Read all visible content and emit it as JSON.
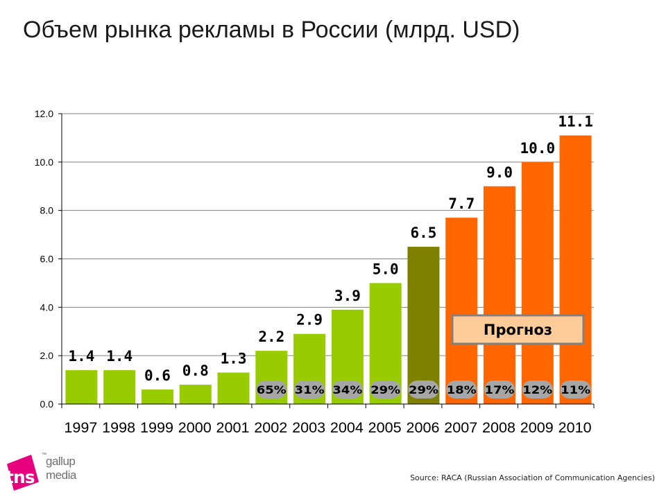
{
  "title": "Объем рынка рекламы в России (млрд. USD)",
  "source": "Source: RACA (Russian Association of Communication Agencies)",
  "logo": {
    "mark": "tns",
    "tm": "™",
    "line1": "gallup",
    "line2": "media"
  },
  "colors": {
    "actual": "#99cc00",
    "current": "#808000",
    "forecast": "#ff6600",
    "growth_pill": "#a6a6a6",
    "forecast_box_fill": "#ffcc99",
    "forecast_box_border": "#808080",
    "grid": "#808080"
  },
  "chart_data": {
    "type": "bar",
    "categories": [
      "1997",
      "1998",
      "1999",
      "2000",
      "2001",
      "2002",
      "2003",
      "2004",
      "2005",
      "2006",
      "2007",
      "2008",
      "2009",
      "2010"
    ],
    "values": [
      1.4,
      1.4,
      0.6,
      0.8,
      1.3,
      2.2,
      2.9,
      3.9,
      5.0,
      6.5,
      7.7,
      9.0,
      10.0,
      11.1
    ],
    "value_labels": [
      "1.4",
      "1.4",
      "0.6",
      "0.8",
      "1.3",
      "2.2",
      "2.9",
      "3.9",
      "5.0",
      "6.5",
      "7.7",
      "9.0",
      "10.0",
      "11.1"
    ],
    "bar_kinds": [
      "actual",
      "actual",
      "actual",
      "actual",
      "actual",
      "actual",
      "actual",
      "actual",
      "actual",
      "current",
      "forecast",
      "forecast",
      "forecast",
      "forecast"
    ],
    "growth_labels": [
      "",
      "",
      "",
      "",
      "",
      "65%",
      "31%",
      "34%",
      "29%",
      "29%",
      "18%",
      "17%",
      "12%",
      "11%"
    ],
    "ylim": [
      0,
      12
    ],
    "yticks": [
      "0.0",
      "2.0",
      "4.0",
      "6.0",
      "8.0",
      "10.0",
      "12.0"
    ],
    "grid": true,
    "annotation": "Прогноз",
    "xlabel": "",
    "ylabel": ""
  }
}
